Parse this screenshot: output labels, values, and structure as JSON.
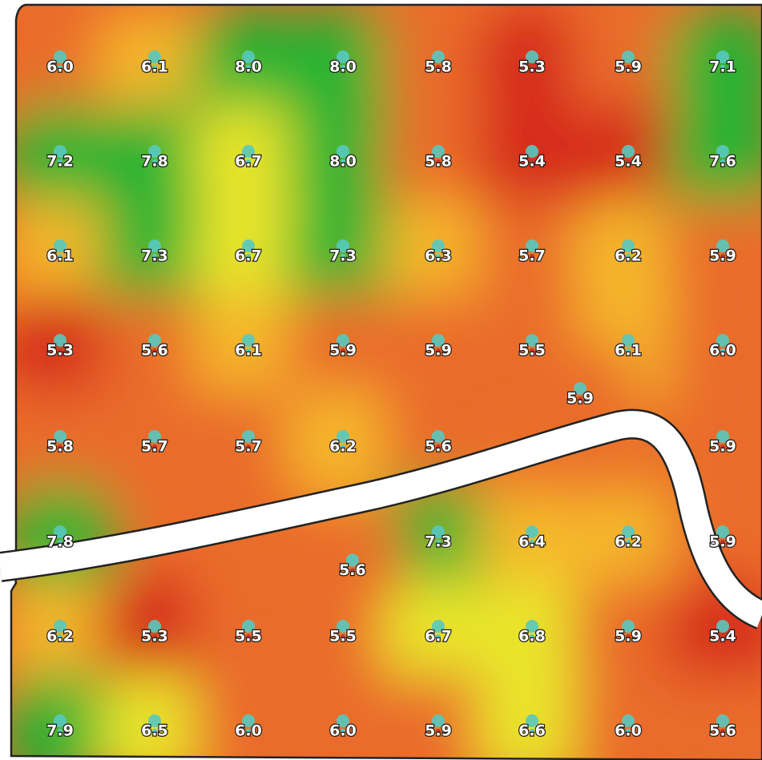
{
  "map": {
    "type": "interpolated soil pH sample grid",
    "columns": 8,
    "rows": 8,
    "color_scale": {
      "low": "#d62a1e",
      "mid_low": "#ea6c2a",
      "mid": "#f5b72a",
      "mid_high": "#e9e62a",
      "high": "#22b431"
    },
    "road": {
      "color": "#ffffff",
      "outline": "#222222"
    },
    "marker_colors": {
      "dot": "#56c9c0",
      "inner": "#c0392b"
    }
  },
  "samples": [
    {
      "row": 0,
      "col": 0,
      "value": "6.0"
    },
    {
      "row": 0,
      "col": 1,
      "value": "6.1"
    },
    {
      "row": 0,
      "col": 2,
      "value": "8.0"
    },
    {
      "row": 0,
      "col": 3,
      "value": "8.0"
    },
    {
      "row": 0,
      "col": 4,
      "value": "5.8"
    },
    {
      "row": 0,
      "col": 5,
      "value": "5.3"
    },
    {
      "row": 0,
      "col": 6,
      "value": "5.9"
    },
    {
      "row": 0,
      "col": 7,
      "value": "7.1"
    },
    {
      "row": 1,
      "col": 0,
      "value": "7.2"
    },
    {
      "row": 1,
      "col": 1,
      "value": "7.8"
    },
    {
      "row": 1,
      "col": 2,
      "value": "6.7"
    },
    {
      "row": 1,
      "col": 3,
      "value": "8.0"
    },
    {
      "row": 1,
      "col": 4,
      "value": "5.8"
    },
    {
      "row": 1,
      "col": 5,
      "value": "5.4"
    },
    {
      "row": 1,
      "col": 6,
      "value": "5.4"
    },
    {
      "row": 1,
      "col": 7,
      "value": "7.6"
    },
    {
      "row": 2,
      "col": 0,
      "value": "6.1"
    },
    {
      "row": 2,
      "col": 1,
      "value": "7.3"
    },
    {
      "row": 2,
      "col": 2,
      "value": "6.7"
    },
    {
      "row": 2,
      "col": 3,
      "value": "7.3"
    },
    {
      "row": 2,
      "col": 4,
      "value": "6.3"
    },
    {
      "row": 2,
      "col": 5,
      "value": "5.7"
    },
    {
      "row": 2,
      "col": 6,
      "value": "6.2"
    },
    {
      "row": 2,
      "col": 7,
      "value": "5.9"
    },
    {
      "row": 3,
      "col": 0,
      "value": "5.3"
    },
    {
      "row": 3,
      "col": 1,
      "value": "5.6"
    },
    {
      "row": 3,
      "col": 2,
      "value": "6.1"
    },
    {
      "row": 3,
      "col": 3,
      "value": "5.9"
    },
    {
      "row": 3,
      "col": 4,
      "value": "5.9"
    },
    {
      "row": 3,
      "col": 5,
      "value": "5.5"
    },
    {
      "row": 3,
      "col": 6,
      "value": "6.1"
    },
    {
      "row": 3,
      "col": 7,
      "value": "6.0"
    },
    {
      "row": 3.5,
      "col": 5.5,
      "value": "5.9"
    },
    {
      "row": 4,
      "col": 0,
      "value": "5.8"
    },
    {
      "row": 4,
      "col": 1,
      "value": "5.7"
    },
    {
      "row": 4,
      "col": 2,
      "value": "5.7"
    },
    {
      "row": 4,
      "col": 3,
      "value": "6.2"
    },
    {
      "row": 4,
      "col": 4,
      "value": "5.6"
    },
    {
      "row": 4,
      "col": 7,
      "value": "5.9"
    },
    {
      "row": 5,
      "col": 0,
      "value": "7.8"
    },
    {
      "row": 5,
      "col": 4,
      "value": "7.3"
    },
    {
      "row": 5,
      "col": 5,
      "value": "6.4"
    },
    {
      "row": 5,
      "col": 6,
      "value": "6.2"
    },
    {
      "row": 5,
      "col": 7,
      "value": "5.9"
    },
    {
      "row": 5.3,
      "col": 3.1,
      "value": "5.6"
    },
    {
      "row": 6,
      "col": 0,
      "value": "6.2"
    },
    {
      "row": 6,
      "col": 1,
      "value": "5.3"
    },
    {
      "row": 6,
      "col": 2,
      "value": "5.5"
    },
    {
      "row": 6,
      "col": 3,
      "value": "5.5"
    },
    {
      "row": 6,
      "col": 4,
      "value": "6.7"
    },
    {
      "row": 6,
      "col": 5,
      "value": "6.8"
    },
    {
      "row": 6,
      "col": 6,
      "value": "5.9"
    },
    {
      "row": 6,
      "col": 7,
      "value": "5.4"
    },
    {
      "row": 7,
      "col": 0,
      "value": "7.9"
    },
    {
      "row": 7,
      "col": 1,
      "value": "6.5"
    },
    {
      "row": 7,
      "col": 2,
      "value": "6.0"
    },
    {
      "row": 7,
      "col": 3,
      "value": "6.0"
    },
    {
      "row": 7,
      "col": 4,
      "value": "5.9"
    },
    {
      "row": 7,
      "col": 5,
      "value": "6.6"
    },
    {
      "row": 7,
      "col": 6,
      "value": "6.0"
    },
    {
      "row": 7,
      "col": 7,
      "value": "5.6"
    }
  ]
}
